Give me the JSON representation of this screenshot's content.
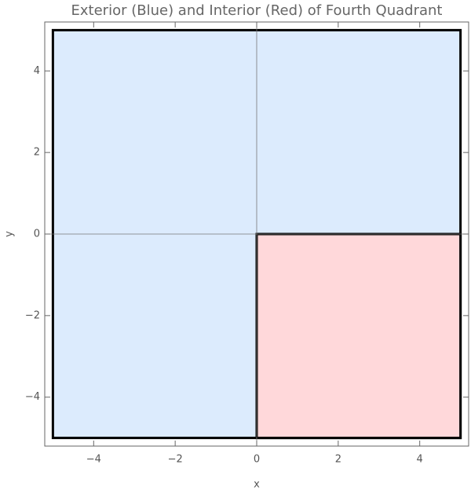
{
  "chart_data": {
    "type": "region",
    "title": "Exterior (Blue) and Interior (Red) of Fourth Quadrant",
    "x_label": "x",
    "y_label": "y",
    "xlim": [
      -5.2,
      5.2
    ],
    "ylim": [
      -5.2,
      5.2
    ],
    "xticks": [
      {
        "value": -4,
        "label": "−4"
      },
      {
        "value": -2,
        "label": "−2"
      },
      0,
      2,
      4
    ],
    "yticks": [
      {
        "value": -4,
        "label": "−4"
      },
      {
        "value": -2,
        "label": "−2"
      },
      0,
      2,
      4
    ],
    "regions": [
      {
        "color": "#dcebfd",
        "x": [
          -5,
          5
        ],
        "y": [
          -5,
          5
        ]
      },
      {
        "color": "#ffd8da",
        "x": [
          0,
          5
        ],
        "y": [
          -5,
          0
        ]
      }
    ]
  }
}
